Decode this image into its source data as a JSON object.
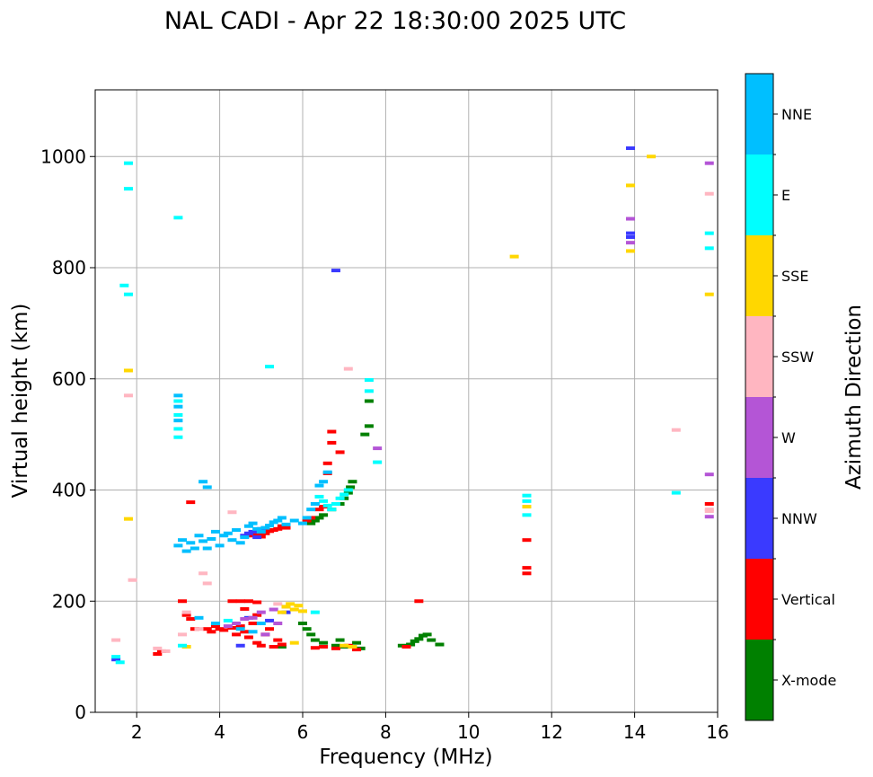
{
  "chart_data": {
    "type": "scatter",
    "title": "NAL CADI - Apr 22 18:30:00 2025 UTC",
    "xlabel": "Frequency (MHz)",
    "ylabel": "Virtual height (km)",
    "xlim": [
      1,
      16
    ],
    "ylim": [
      0,
      1120
    ],
    "xticks": [
      2,
      4,
      6,
      8,
      10,
      12,
      14,
      16
    ],
    "yticks": [
      0,
      200,
      400,
      600,
      800,
      1000
    ],
    "grid": true,
    "colorbar": {
      "label": "Azimuth Direction",
      "categories": [
        "X-mode",
        "Vertical",
        "NNW",
        "W",
        "SSW",
        "SSE",
        "E",
        "NNE"
      ],
      "colors": [
        "#008000",
        "#ff0000",
        "#3a3aff",
        "#b455d6",
        "#ffb6c1",
        "#ffd700",
        "#00ffff",
        "#00bfff"
      ]
    },
    "series": [
      {
        "name": "X-mode",
        "points": [
          [
            6.2,
            340
          ],
          [
            6.3,
            345
          ],
          [
            6.4,
            350
          ],
          [
            6.5,
            355
          ],
          [
            6.7,
            365
          ],
          [
            6.9,
            375
          ],
          [
            7.0,
            385
          ],
          [
            7.1,
            395
          ],
          [
            7.15,
            405
          ],
          [
            7.2,
            415
          ],
          [
            7.5,
            500
          ],
          [
            7.6,
            515
          ],
          [
            7.6,
            560
          ],
          [
            6.0,
            160
          ],
          [
            6.1,
            150
          ],
          [
            6.2,
            140
          ],
          [
            6.3,
            130
          ],
          [
            6.5,
            125
          ],
          [
            6.8,
            120
          ],
          [
            7.0,
            118
          ],
          [
            7.3,
            125
          ],
          [
            7.4,
            115
          ],
          [
            8.4,
            120
          ],
          [
            8.6,
            122
          ],
          [
            8.7,
            128
          ],
          [
            8.8,
            132
          ],
          [
            8.9,
            138
          ],
          [
            9.0,
            140
          ],
          [
            9.1,
            130
          ],
          [
            9.3,
            122
          ],
          [
            5.5,
            118
          ],
          [
            6.9,
            130
          ]
        ]
      },
      {
        "name": "Vertical",
        "points": [
          [
            4.8,
            318
          ],
          [
            4.9,
            320
          ],
          [
            5.0,
            316
          ],
          [
            5.1,
            322
          ],
          [
            5.2,
            326
          ],
          [
            5.3,
            328
          ],
          [
            5.4,
            330
          ],
          [
            5.5,
            335
          ],
          [
            5.6,
            332
          ],
          [
            6.1,
            345
          ],
          [
            6.2,
            350
          ],
          [
            6.4,
            365
          ],
          [
            6.5,
            370
          ],
          [
            6.6,
            430
          ],
          [
            6.6,
            448
          ],
          [
            6.7,
            485
          ],
          [
            6.7,
            505
          ],
          [
            6.9,
            468
          ],
          [
            4.0,
            150
          ],
          [
            4.1,
            148
          ],
          [
            4.3,
            152
          ],
          [
            4.4,
            140
          ],
          [
            4.5,
            155
          ],
          [
            4.6,
            145
          ],
          [
            4.7,
            135
          ],
          [
            4.8,
            160
          ],
          [
            4.9,
            125
          ],
          [
            5.0,
            120
          ],
          [
            5.1,
            140
          ],
          [
            5.2,
            150
          ],
          [
            5.3,
            118
          ],
          [
            5.4,
            130
          ],
          [
            5.5,
            122
          ],
          [
            3.7,
            150
          ],
          [
            3.8,
            145
          ],
          [
            3.9,
            155
          ],
          [
            3.1,
            200
          ],
          [
            3.2,
            175
          ],
          [
            3.3,
            168
          ],
          [
            3.4,
            150
          ],
          [
            2.5,
            105
          ],
          [
            2.6,
            110
          ],
          [
            3.3,
            378
          ],
          [
            4.3,
            200
          ],
          [
            4.5,
            200
          ],
          [
            4.7,
            200
          ],
          [
            4.9,
            198
          ],
          [
            6.3,
            116
          ],
          [
            6.5,
            118
          ],
          [
            6.8,
            115
          ],
          [
            7.1,
            120
          ],
          [
            7.3,
            113
          ],
          [
            8.5,
            118
          ],
          [
            8.8,
            200
          ],
          [
            11.4,
            250
          ],
          [
            11.4,
            260
          ],
          [
            11.4,
            310
          ],
          [
            15.8,
            375
          ],
          [
            4.9,
            175
          ],
          [
            4.6,
            186
          ]
        ]
      },
      {
        "name": "NNW",
        "points": [
          [
            4.6,
            318
          ],
          [
            4.7,
            322
          ],
          [
            4.8,
            325
          ],
          [
            4.9,
            315
          ],
          [
            5.0,
            330
          ],
          [
            1.5,
            95
          ],
          [
            4.5,
            120
          ],
          [
            4.7,
            170
          ],
          [
            5.2,
            165
          ],
          [
            5.6,
            180
          ],
          [
            6.8,
            795
          ],
          [
            13.9,
            1015
          ],
          [
            13.9,
            862
          ],
          [
            13.9,
            855
          ]
        ]
      },
      {
        "name": "W",
        "points": [
          [
            4.2,
            155
          ],
          [
            4.4,
            160
          ],
          [
            4.6,
            168
          ],
          [
            4.8,
            170
          ],
          [
            5.0,
            180
          ],
          [
            5.3,
            185
          ],
          [
            5.6,
            190
          ],
          [
            5.1,
            140
          ],
          [
            7.8,
            475
          ],
          [
            13.9,
            888
          ],
          [
            13.9,
            845
          ],
          [
            15.8,
            988
          ],
          [
            15.8,
            428
          ],
          [
            15.8,
            352
          ],
          [
            5.4,
            160
          ]
        ]
      },
      {
        "name": "SSW",
        "points": [
          [
            1.5,
            130
          ],
          [
            1.8,
            570
          ],
          [
            1.9,
            238
          ],
          [
            2.5,
            115
          ],
          [
            2.7,
            110
          ],
          [
            3.1,
            140
          ],
          [
            3.2,
            180
          ],
          [
            3.5,
            150
          ],
          [
            3.6,
            250
          ],
          [
            3.7,
            232
          ],
          [
            4.3,
            360
          ],
          [
            5.4,
            195
          ],
          [
            7.1,
            618
          ],
          [
            15.0,
            508
          ],
          [
            15.8,
            365
          ],
          [
            15.8,
            362
          ],
          [
            15.8,
            933
          ]
        ]
      },
      {
        "name": "SSE",
        "points": [
          [
            1.8,
            615
          ],
          [
            1.8,
            348
          ],
          [
            5.5,
            180
          ],
          [
            5.6,
            190
          ],
          [
            5.7,
            195
          ],
          [
            5.8,
            185
          ],
          [
            5.9,
            192
          ],
          [
            6.0,
            182
          ],
          [
            7.0,
            120
          ],
          [
            7.2,
            118
          ],
          [
            11.1,
            820
          ],
          [
            11.4,
            370
          ],
          [
            13.9,
            948
          ],
          [
            13.9,
            830
          ],
          [
            14.4,
            1000
          ],
          [
            15.8,
            752
          ],
          [
            3.2,
            118
          ],
          [
            5.8,
            125
          ]
        ]
      },
      {
        "name": "E",
        "points": [
          [
            1.5,
            100
          ],
          [
            1.6,
            90
          ],
          [
            1.7,
            768
          ],
          [
            1.8,
            752
          ],
          [
            1.8,
            942
          ],
          [
            1.8,
            988
          ],
          [
            3.0,
            890
          ],
          [
            3.0,
            560
          ],
          [
            3.0,
            535
          ],
          [
            3.0,
            510
          ],
          [
            3.0,
            495
          ],
          [
            5.2,
            622
          ],
          [
            7.6,
            598
          ],
          [
            7.6,
            578
          ],
          [
            7.8,
            450
          ],
          [
            6.4,
            388
          ],
          [
            6.5,
            380
          ],
          [
            6.6,
            372
          ],
          [
            6.7,
            365
          ],
          [
            6.8,
            375
          ],
          [
            6.9,
            385
          ],
          [
            7.0,
            392
          ],
          [
            7.1,
            400
          ],
          [
            11.4,
            390
          ],
          [
            11.4,
            380
          ],
          [
            11.4,
            355
          ],
          [
            15.0,
            395
          ],
          [
            15.8,
            862
          ],
          [
            15.8,
            835
          ],
          [
            4.2,
            165
          ],
          [
            6.3,
            180
          ],
          [
            3.1,
            120
          ]
        ]
      },
      {
        "name": "NNE",
        "points": [
          [
            3.0,
            300
          ],
          [
            3.1,
            310
          ],
          [
            3.2,
            290
          ],
          [
            3.3,
            305
          ],
          [
            3.4,
            295
          ],
          [
            3.5,
            318
          ],
          [
            3.6,
            308
          ],
          [
            3.7,
            295
          ],
          [
            3.8,
            312
          ],
          [
            3.9,
            325
          ],
          [
            4.0,
            300
          ],
          [
            4.1,
            318
          ],
          [
            4.2,
            322
          ],
          [
            4.3,
            310
          ],
          [
            4.4,
            328
          ],
          [
            4.5,
            305
          ],
          [
            4.6,
            315
          ],
          [
            4.7,
            335
          ],
          [
            4.8,
            340
          ],
          [
            4.9,
            330
          ],
          [
            5.0,
            325
          ],
          [
            5.1,
            332
          ],
          [
            5.2,
            336
          ],
          [
            5.3,
            342
          ],
          [
            5.4,
            345
          ],
          [
            5.5,
            350
          ],
          [
            5.6,
            338
          ],
          [
            5.8,
            345
          ],
          [
            6.0,
            340
          ],
          [
            6.1,
            350
          ],
          [
            6.2,
            365
          ],
          [
            6.3,
            375
          ],
          [
            6.4,
            408
          ],
          [
            6.5,
            415
          ],
          [
            6.6,
            432
          ],
          [
            3.6,
            415
          ],
          [
            3.7,
            405
          ],
          [
            3.0,
            570
          ],
          [
            3.0,
            550
          ],
          [
            3.0,
            525
          ],
          [
            4.5,
            150
          ],
          [
            4.8,
            145
          ],
          [
            5.0,
            160
          ],
          [
            3.9,
            160
          ],
          [
            3.5,
            170
          ]
        ]
      }
    ]
  }
}
